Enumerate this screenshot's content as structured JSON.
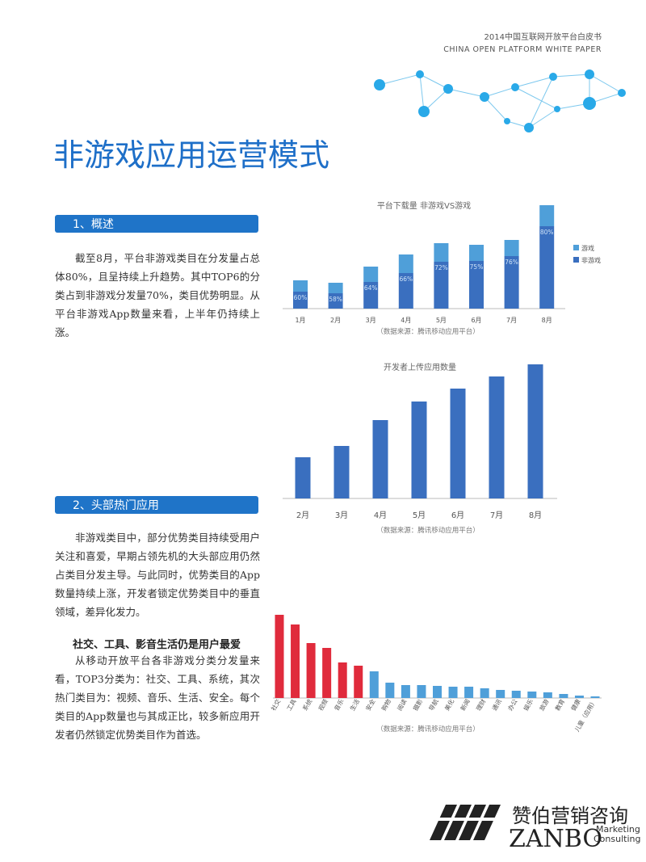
{
  "header": {
    "line1": "2014中国互联网开放平台白皮书",
    "line2": "CHINA OPEN PLATFORM WHITE PAPER"
  },
  "title": "非游戏应用运营模式",
  "sections": [
    {
      "heading": "1、概述",
      "paragraph": "截至8月，平台非游戏类目在分发量占总体80%，且呈持续上升趋势。其中TOP6的分类占到非游戏分发量70%，类目优势明显。从平台非游戏App数量来看，上半年仍持续上涨。"
    },
    {
      "heading": "2、头部热门应用",
      "paragraph": "非游戏类目中，部分优势类目持续受用户关注和喜爱，早期占领先机的大头部应用仍然占类目分发主导。与此同时，优势类目的App数量持续上涨，开发者锁定优势类目中的垂直领域，差异化发力。"
    }
  ],
  "highlight": {
    "heading": "社交、工具、影音生活仍是用户最爱",
    "paragraph": "从移动开放平台各非游戏分类分发量来看，TOP3分类为：社交、工具、系统，其次热门类目为：视频、音乐、生活、安全。每个类目的App数量也与其成正比，较多新应用开发者仍然锁定优势类目作为首选。"
  },
  "chart_data": [
    {
      "type": "stacked-bar",
      "title": "平台下载量 非游戏VS游戏",
      "categories": [
        "1月",
        "2月",
        "3月",
        "4月",
        "5月",
        "6月",
        "7月",
        "8月"
      ],
      "series": [
        {
          "name": "非游戏",
          "color": "#3a6fbf",
          "values": [
            21,
            19,
            33,
            44,
            58,
            59,
            65,
            102
          ]
        },
        {
          "name": "游戏",
          "color": "#4f9fd9",
          "values": [
            14,
            13,
            19,
            23,
            23,
            20,
            20,
            26
          ]
        }
      ],
      "annotations": [
        "60%",
        "58%",
        "64%",
        "66%",
        "72%",
        "75%",
        "76%",
        "80%"
      ],
      "legend": "right",
      "source": "（数据来源：腾讯移动应用平台）"
    },
    {
      "type": "bar",
      "title": "开发者上传应用数量",
      "categories": [
        "2月",
        "3月",
        "4月",
        "5月",
        "6月",
        "7月",
        "8月"
      ],
      "values": [
        51,
        65,
        97,
        120,
        136,
        151,
        166
      ],
      "color": "#3a6fbf",
      "source": "（数据来源：腾讯移动应用平台）"
    },
    {
      "type": "bar",
      "categories": [
        "社交",
        "工具",
        "系统",
        "视频",
        "音乐",
        "生活",
        "安全",
        "购物",
        "阅读",
        "摄影",
        "导航",
        "美化",
        "新闻",
        "理财",
        "通讯",
        "办公",
        "娱乐",
        "旅游",
        "教育",
        "健康",
        "儿童（应用）"
      ],
      "values": [
        103,
        91,
        68,
        62,
        44,
        40,
        33,
        19,
        16,
        16,
        15,
        14,
        14,
        12,
        10,
        9,
        8,
        7,
        5,
        3,
        2
      ],
      "colors": [
        "#e02b3c",
        "#e02b3c",
        "#e02b3c",
        "#e02b3c",
        "#e02b3c",
        "#e02b3c",
        "#4f9fd9",
        "#4f9fd9",
        "#4f9fd9",
        "#4f9fd9",
        "#4f9fd9",
        "#4f9fd9",
        "#4f9fd9",
        "#4f9fd9",
        "#4f9fd9",
        "#4f9fd9",
        "#4f9fd9",
        "#4f9fd9",
        "#4f9fd9",
        "#4f9fd9",
        "#4f9fd9"
      ],
      "source": "（数据来源：腾讯移动应用平台）"
    }
  ],
  "logo": {
    "name": "赞伯营销咨询",
    "brand": "ZANBO",
    "tagline1": "Marketing",
    "tagline2": "Consulting"
  }
}
